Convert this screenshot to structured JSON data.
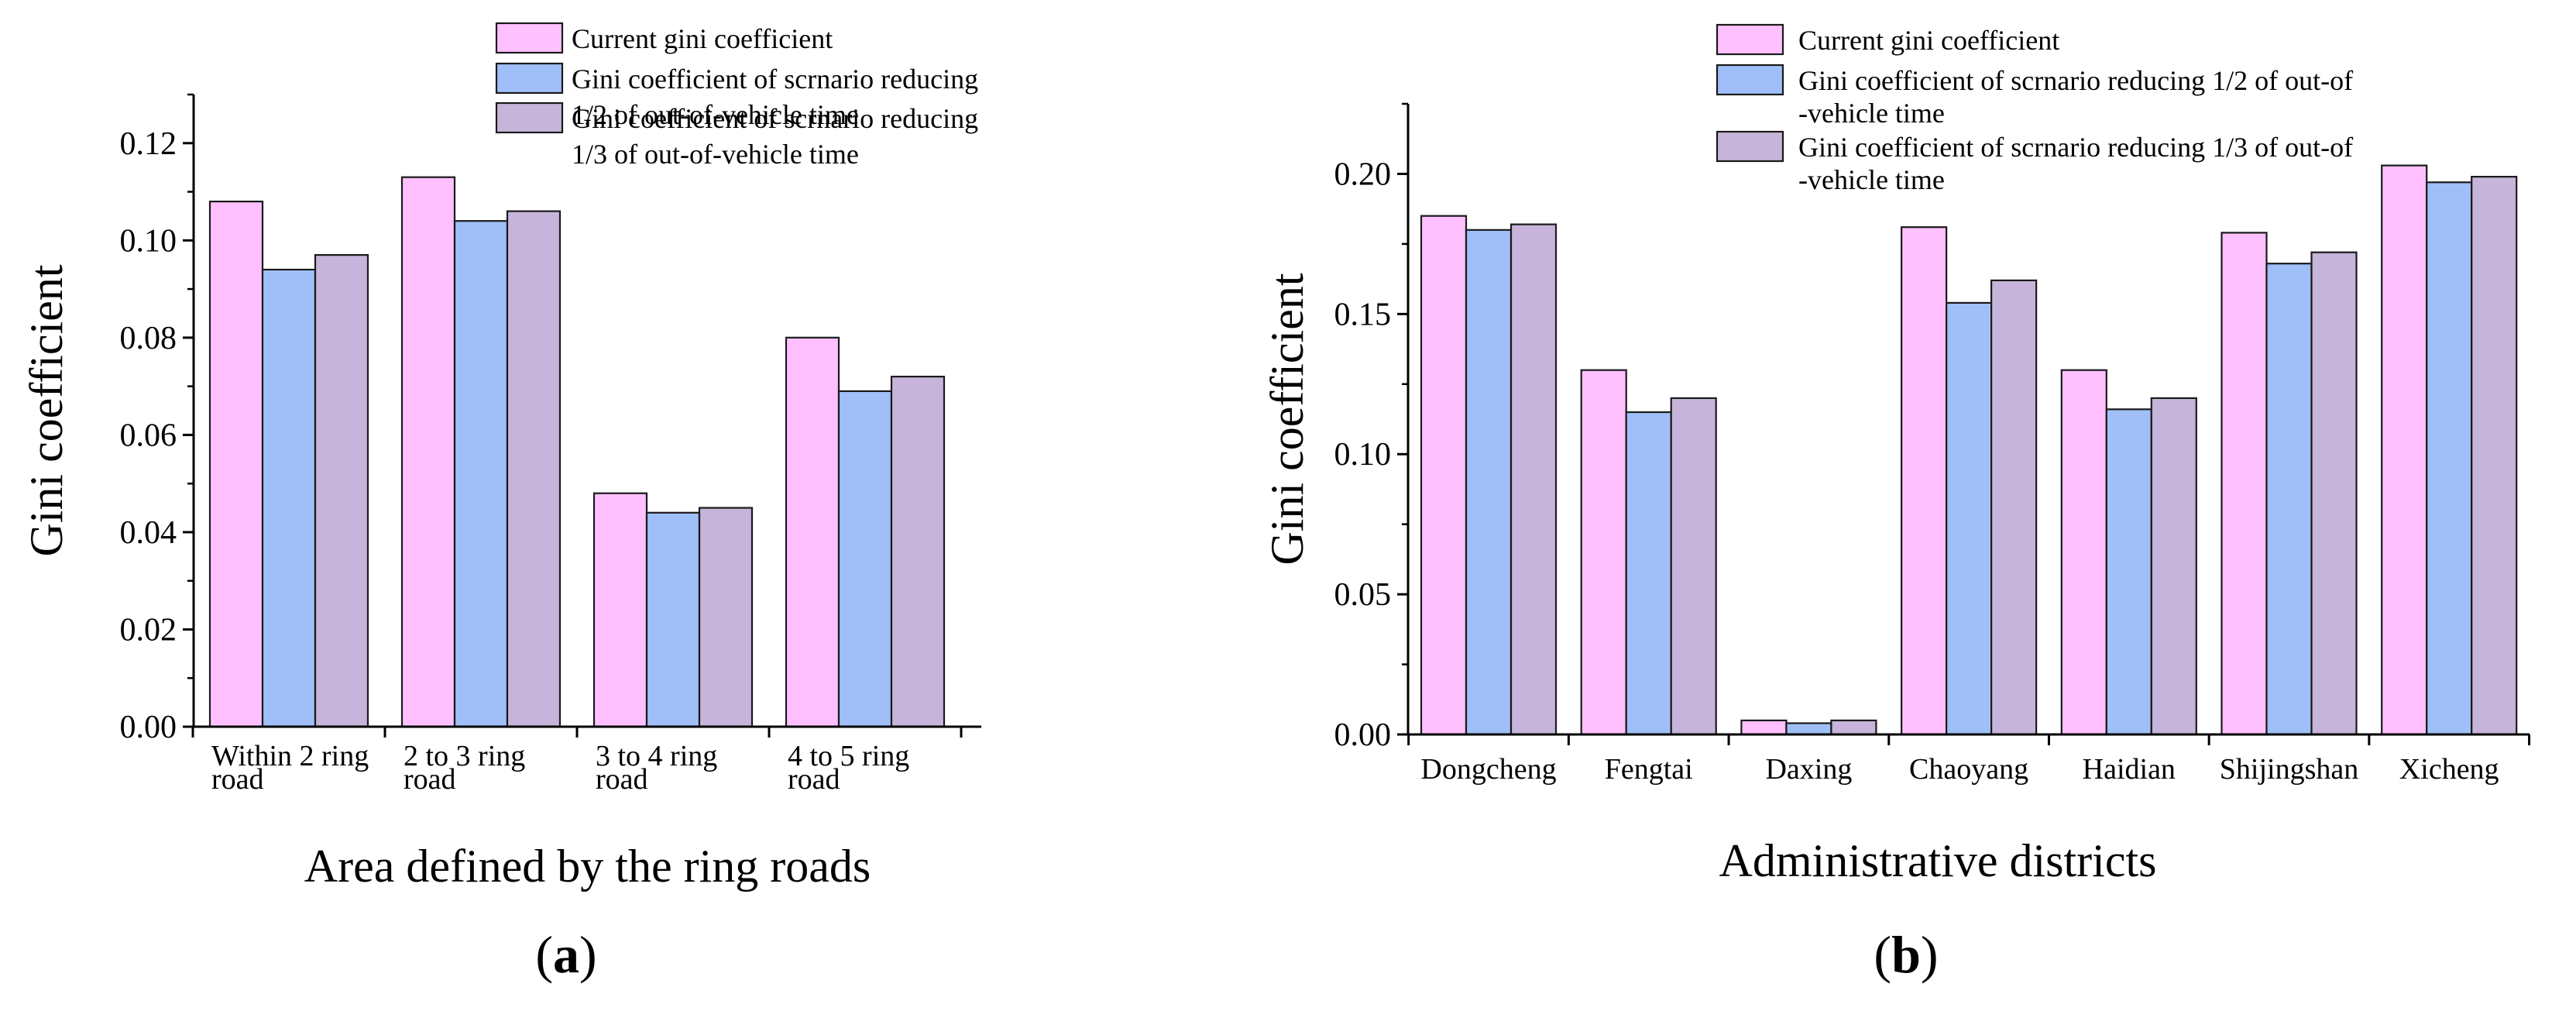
{
  "figure": {
    "colors": {
      "current": "#ffc0ff",
      "half": "#a0bff8",
      "third": "#c6b4da",
      "stroke": "#1a1a1a",
      "axis": "#000000"
    }
  },
  "chart_data": [
    {
      "type": "bar",
      "panel": "(a)",
      "panel_letter": "a",
      "title": "",
      "xlabel": "Area defined by the ring roads",
      "ylabel": "Gini coefficient",
      "ylim": [
        0,
        0.13
      ],
      "yticks": [
        0.0,
        0.02,
        0.04,
        0.06,
        0.08,
        0.1,
        0.12
      ],
      "ytick_labels": [
        "0.00",
        "0.02",
        "0.04",
        "0.06",
        "0.08",
        "0.10",
        "0.12"
      ],
      "minor_step": 0.01,
      "categories": [
        "Within 2 ring road",
        "2 to 3 ring road",
        "3 to 4 ring road",
        "4 to 5 ring road"
      ],
      "category_lines": [
        [
          "Within 2 ring",
          "road"
        ],
        [
          "2 to 3 ring",
          "road"
        ],
        [
          "3 to 4 ring",
          "road"
        ],
        [
          "4 to 5 ring",
          "road"
        ]
      ],
      "legend_position": "top-right",
      "series": [
        {
          "name": "Current gini coefficient",
          "name_lines": [
            "Current gini coefficient"
          ],
          "color_key": "current",
          "values": [
            0.108,
            0.113,
            0.048,
            0.08
          ]
        },
        {
          "name": "Gini coefficient of scrnario reducing 1/2 of out-of-vehicle time",
          "name_lines": [
            "Gini coefficient of scrnario reducing",
            "1/2 of out-of-vehicle time"
          ],
          "color_key": "half",
          "values": [
            0.094,
            0.104,
            0.044,
            0.069
          ]
        },
        {
          "name": "Gini coefficient of scrnario reducing 1/3 of out-of-vehicle time",
          "name_lines": [
            "Gini coefficient of scrnario reducing",
            "1/3 of out-of-vehicle time"
          ],
          "color_key": "third",
          "values": [
            0.097,
            0.106,
            0.045,
            0.072
          ]
        }
      ]
    },
    {
      "type": "bar",
      "panel": "(b)",
      "panel_letter": "b",
      "title": "",
      "xlabel": "Administrative districts",
      "ylabel": "Gini coefficient",
      "ylim": [
        0,
        0.225
      ],
      "yticks": [
        0.0,
        0.05,
        0.1,
        0.15,
        0.2
      ],
      "ytick_labels": [
        "0.00",
        "0.05",
        "0.10",
        "0.15",
        "0.20"
      ],
      "minor_step": 0.025,
      "categories": [
        "Dongcheng",
        "Fengtai",
        "Daxing",
        "Chaoyang",
        "Haidian",
        "Shijingshan",
        "Xicheng"
      ],
      "category_lines": [
        [
          "Dongcheng"
        ],
        [
          "Fengtai"
        ],
        [
          "Daxing"
        ],
        [
          "Chaoyang"
        ],
        [
          "Haidian"
        ],
        [
          "Shijingshan"
        ],
        [
          "Xicheng"
        ]
      ],
      "legend_position": "top-right",
      "series": [
        {
          "name": "Current gini coefficient",
          "name_lines": [
            "Current gini coefficient"
          ],
          "color_key": "current",
          "values": [
            0.185,
            0.13,
            0.005,
            0.181,
            0.13,
            0.179,
            0.203
          ]
        },
        {
          "name": "Gini coefficient of scrnario reducing 1/2 of out-of-vehicle time",
          "name_lines": [
            "Gini coefficient of scrnario reducing 1/2 of out-of",
            "-vehicle time"
          ],
          "color_key": "half",
          "values": [
            0.18,
            0.115,
            0.004,
            0.154,
            0.116,
            0.168,
            0.197
          ]
        },
        {
          "name": "Gini coefficient of scrnario reducing 1/3 of out-of-vehicle time",
          "name_lines": [
            "Gini coefficient of scrnario reducing 1/3 of out-of",
            "-vehicle time"
          ],
          "color_key": "third",
          "values": [
            0.182,
            0.12,
            0.005,
            0.162,
            0.12,
            0.172,
            0.199
          ]
        }
      ]
    }
  ]
}
